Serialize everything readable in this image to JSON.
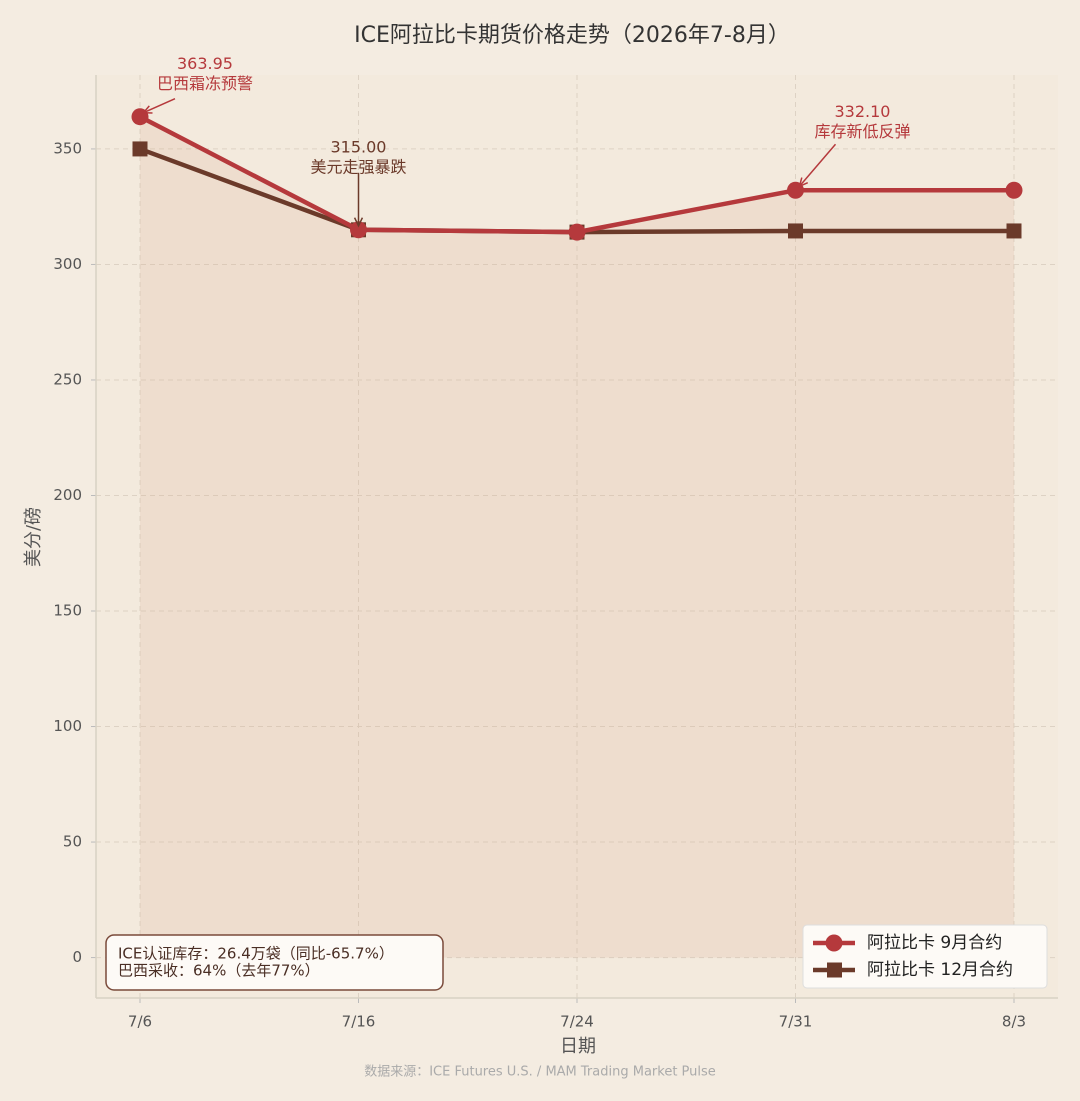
{
  "chart_data": {
    "type": "line",
    "title": "ICE阿拉比卡期货价格走势（2026年7-8月）",
    "x_label": "日期",
    "y_label": "美分/磅",
    "categories": [
      "7/6",
      "7/16",
      "7/24",
      "7/31",
      "8/3"
    ],
    "series": [
      {
        "name": "阿拉比卡 9月合约",
        "color": "#b5393c",
        "marker": "circle",
        "values": [
          363.95,
          315.0,
          314.0,
          332.1,
          332.1
        ]
      },
      {
        "name": "阿拉比卡 12月合约",
        "color": "#6b3a2a",
        "marker": "square",
        "values": [
          350.0,
          315.0,
          314.0,
          314.5,
          314.5
        ]
      }
    ],
    "ylim": [
      -17.5,
      382
    ],
    "yticks": [
      0,
      50,
      100,
      150,
      200,
      250,
      300,
      350
    ],
    "grid": true,
    "legend": "lower right",
    "annotations": [
      {
        "x": "7/6",
        "y": 363.95,
        "label": "363.95",
        "text": "巴西霜冻预警",
        "color": "#b5393c"
      },
      {
        "x": "7/16",
        "y": 315.0,
        "label": "315.00",
        "text": "美元走强暴跌",
        "color": "#6b3a2a"
      },
      {
        "x": "7/31",
        "y": 332.1,
        "label": "332.10",
        "text": "库存新低反弹",
        "color": "#b5393c"
      }
    ],
    "info_box": [
      "ICE认证库存：26.4万袋（同比-65.7%）",
      "巴西采收：64%（去年77%）"
    ],
    "source": "数据来源：ICE Futures U.S. / MAM Trading Market Pulse"
  }
}
